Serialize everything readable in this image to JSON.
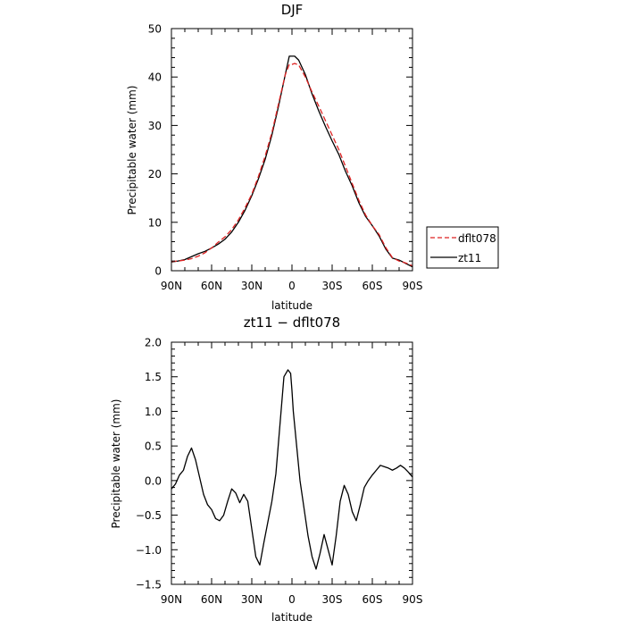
{
  "chart_data": [
    {
      "type": "line",
      "title": "DJF",
      "xlabel": "latitude",
      "ylabel": "Precipitable water  (mm)",
      "xlim": [
        90,
        -90
      ],
      "ylim": [
        0,
        50
      ],
      "x_ticks": [
        {
          "value": 90,
          "label": "90N"
        },
        {
          "value": 60,
          "label": "60N"
        },
        {
          "value": 30,
          "label": "30N"
        },
        {
          "value": 0,
          "label": "0"
        },
        {
          "value": -30,
          "label": "30S"
        },
        {
          "value": -60,
          "label": "60S"
        },
        {
          "value": -90,
          "label": "90S"
        }
      ],
      "y_ticks": [
        {
          "value": 0,
          "label": "0"
        },
        {
          "value": 10,
          "label": "10"
        },
        {
          "value": 20,
          "label": "20"
        },
        {
          "value": 30,
          "label": "30"
        },
        {
          "value": 40,
          "label": "40"
        },
        {
          "value": 50,
          "label": "50"
        }
      ],
      "legend": {
        "placement": "right"
      },
      "series": [
        {
          "name": "dflt078",
          "color": "#dd2222",
          "dashed": true,
          "x": [
            90,
            85,
            80,
            75,
            70,
            65,
            60,
            55,
            50,
            45,
            40,
            35,
            30,
            25,
            20,
            15,
            10,
            5,
            2,
            0,
            -2,
            -5,
            -10,
            -15,
            -20,
            -25,
            -30,
            -35,
            -40,
            -45,
            -50,
            -55,
            -60,
            -65,
            -70,
            -75,
            -80,
            -85,
            -90
          ],
          "values": [
            1.9,
            2.0,
            2.2,
            2.5,
            3.0,
            3.7,
            4.7,
            5.9,
            7.0,
            8.5,
            10.5,
            13.0,
            15.8,
            19.5,
            23.7,
            28.5,
            34.5,
            40.5,
            42.6,
            42.6,
            42.8,
            42.5,
            40.0,
            36.9,
            34.0,
            31.0,
            28.0,
            25.0,
            21.5,
            18.0,
            14.5,
            11.5,
            9.3,
            7.5,
            4.8,
            2.7,
            2.0,
            1.6,
            1.0
          ]
        },
        {
          "name": "zt11",
          "color": "#000000",
          "dashed": false,
          "x": [
            90,
            85,
            80,
            75,
            70,
            65,
            60,
            55,
            50,
            45,
            40,
            35,
            30,
            25,
            20,
            15,
            10,
            5,
            2,
            0,
            -2,
            -5,
            -10,
            -15,
            -20,
            -25,
            -30,
            -35,
            -40,
            -45,
            -50,
            -55,
            -60,
            -65,
            -70,
            -75,
            -80,
            -85,
            -90
          ],
          "values": [
            1.8,
            2.0,
            2.3,
            2.9,
            3.5,
            4.0,
            4.7,
            5.5,
            6.5,
            8.0,
            10.0,
            12.5,
            15.5,
            19.0,
            23.0,
            28.0,
            34.0,
            40.5,
            44.3,
            44.3,
            44.3,
            43.5,
            40.5,
            36.5,
            33.0,
            29.8,
            26.8,
            24.0,
            20.5,
            17.5,
            14.0,
            11.2,
            9.3,
            7.2,
            4.5,
            2.6,
            2.2,
            1.5,
            0.8
          ]
        }
      ]
    },
    {
      "type": "line",
      "title": "zt11 − dflt078",
      "xlabel": "latitude",
      "ylabel": "Precipitable water  (mm)",
      "xlim": [
        90,
        -90
      ],
      "ylim": [
        -1.5,
        2.0
      ],
      "x_ticks": [
        {
          "value": 90,
          "label": "90N"
        },
        {
          "value": 60,
          "label": "60N"
        },
        {
          "value": 30,
          "label": "30N"
        },
        {
          "value": 0,
          "label": "0"
        },
        {
          "value": -30,
          "label": "30S"
        },
        {
          "value": -60,
          "label": "60S"
        },
        {
          "value": -90,
          "label": "90S"
        }
      ],
      "y_ticks": [
        {
          "value": -1.5,
          "label": "−1.5"
        },
        {
          "value": -1.0,
          "label": "−1.0"
        },
        {
          "value": -0.5,
          "label": "−0.5"
        },
        {
          "value": 0.0,
          "label": "0.0"
        },
        {
          "value": 0.5,
          "label": "0.5"
        },
        {
          "value": 1.0,
          "label": "1.0"
        },
        {
          "value": 1.5,
          "label": "1.5"
        },
        {
          "value": 2.0,
          "label": "2.0"
        }
      ],
      "series": [
        {
          "color": "#000000",
          "dashed": false,
          "x": [
            90,
            87,
            84,
            81,
            78,
            75,
            72,
            69,
            66,
            63,
            60,
            57,
            54,
            51,
            48,
            45,
            42,
            39,
            36,
            33,
            30,
            27,
            24,
            21,
            18,
            15,
            12,
            9,
            6,
            3,
            1,
            0,
            -1,
            -3,
            -6,
            -9,
            -12,
            -15,
            -18,
            -21,
            -24,
            -27,
            -30,
            -33,
            -36,
            -39,
            -42,
            -45,
            -48,
            -51,
            -54,
            -57,
            -60,
            -63,
            -66,
            -69,
            -72,
            -75,
            -78,
            -81,
            -84,
            -87,
            -90
          ],
          "values": [
            -0.12,
            -0.05,
            0.08,
            0.15,
            0.35,
            0.47,
            0.3,
            0.05,
            -0.2,
            -0.35,
            -0.42,
            -0.55,
            -0.58,
            -0.5,
            -0.3,
            -0.12,
            -0.18,
            -0.32,
            -0.2,
            -0.3,
            -0.7,
            -1.1,
            -1.22,
            -0.9,
            -0.6,
            -0.3,
            0.1,
            0.8,
            1.5,
            1.6,
            1.55,
            1.3,
            1.0,
            0.6,
            0.0,
            -0.4,
            -0.8,
            -1.1,
            -1.28,
            -1.05,
            -0.78,
            -1.0,
            -1.22,
            -0.8,
            -0.3,
            -0.07,
            -0.2,
            -0.45,
            -0.58,
            -0.35,
            -0.1,
            0.0,
            0.08,
            0.15,
            0.22,
            0.2,
            0.18,
            0.15,
            0.18,
            0.22,
            0.18,
            0.12,
            0.05
          ]
        }
      ]
    }
  ]
}
